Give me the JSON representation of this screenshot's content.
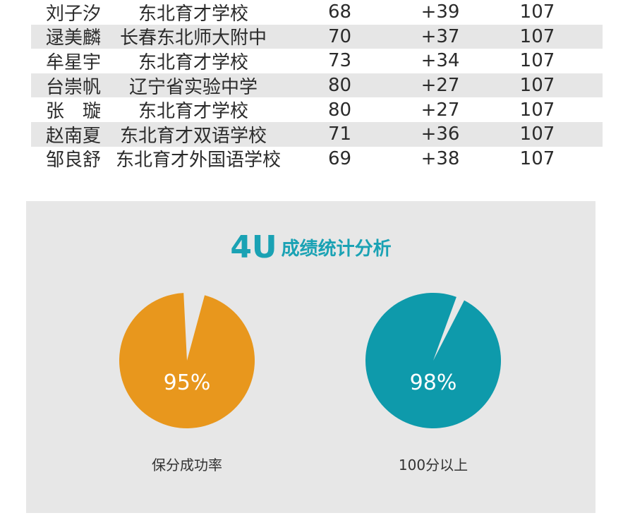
{
  "table": {
    "rows": [
      {
        "name": "刘子汐",
        "school": "东北育才学校",
        "score": "68",
        "diff": "+39",
        "base": "107"
      },
      {
        "name": "逯美麟",
        "school": "长春东北师大附中",
        "score": "70",
        "diff": "+37",
        "base": "107"
      },
      {
        "name": "牟星宇",
        "school": "东北育才学校",
        "score": "73",
        "diff": "+34",
        "base": "107"
      },
      {
        "name": "台崇帆",
        "school": "辽宁省实验中学",
        "score": "80",
        "diff": "+27",
        "base": "107"
      },
      {
        "name": "张　璇",
        "school": "东北育才学校",
        "score": "80",
        "diff": "+27",
        "base": "107"
      },
      {
        "name": "赵南夏",
        "school": "东北育才双语学校",
        "score": "71",
        "diff": "+36",
        "base": "107"
      },
      {
        "name": "邹良舒",
        "school": "东北育才外国语学校",
        "score": "69",
        "diff": "+38",
        "base": "107"
      }
    ],
    "alt_row_color": "#e6e6e6"
  },
  "panel": {
    "title_big": "4U",
    "title_small": "成绩统计分析",
    "title_color": "#1aa2b4",
    "background": "#e7e7e7"
  },
  "chart_data": [
    {
      "type": "pie",
      "title": "保分成功率",
      "value": 95,
      "label": "95%",
      "color": "#e8971d"
    },
    {
      "type": "pie",
      "title": "100分以上",
      "value": 98,
      "label": "98%",
      "color": "#0e9aab"
    }
  ]
}
